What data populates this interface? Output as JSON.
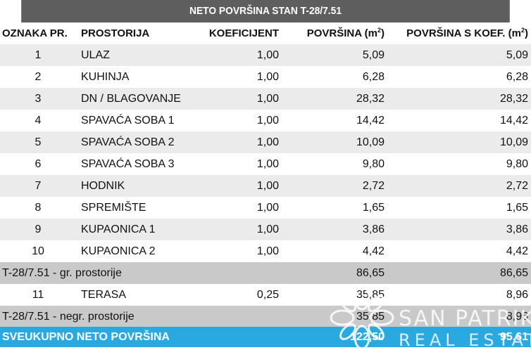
{
  "table": {
    "title": "NETO POVRŠINA STAN T-28/7.51",
    "headers": {
      "no": "OZNAKA PR.",
      "room": "PROSTORIJA",
      "koef": "KOEFICIJENT",
      "pov": "POVRŠINA (m",
      "pov_sup": "2",
      "pov_close": ")",
      "povk": "POVRŠINA S KOEF. (m",
      "povk_sup": "2",
      "povk_close": ")"
    },
    "rows": [
      {
        "no": "1",
        "room": "ULAZ",
        "koef": "1,00",
        "pov": "5,09",
        "povk": "5,09"
      },
      {
        "no": "2",
        "room": "KUHINJA",
        "koef": "1,00",
        "pov": "6,28",
        "povk": "6,28"
      },
      {
        "no": "3",
        "room": "DN / BLAGOVANJE",
        "koef": "1,00",
        "pov": "28,32",
        "povk": "28,32"
      },
      {
        "no": "4",
        "room": "SPAVAĆA SOBA 1",
        "koef": "1,00",
        "pov": "14,42",
        "povk": "14,42"
      },
      {
        "no": "5",
        "room": "SPAVAĆA SOBA 2",
        "koef": "1,00",
        "pov": "10,09",
        "povk": "10,09"
      },
      {
        "no": "6",
        "room": "SPAVAĆA SOBA 3",
        "koef": "1,00",
        "pov": "9,80",
        "povk": "9,80"
      },
      {
        "no": "7",
        "room": "HODNIK",
        "koef": "1,00",
        "pov": "2,72",
        "povk": "2,72"
      },
      {
        "no": "8",
        "room": "SPREMIŠTE",
        "koef": "1,00",
        "pov": "1,65",
        "povk": "1,65"
      },
      {
        "no": "9",
        "room": "KUPAONICA 1",
        "koef": "1,00",
        "pov": "3,86",
        "povk": "3,86"
      },
      {
        "no": "10",
        "room": "KUPAONICA 2",
        "koef": "1,00",
        "pov": "4,42",
        "povk": "4,42"
      }
    ],
    "subtotal_gr": {
      "label": "T-28/7.51 - gr. prostorije",
      "pov": "86,65",
      "povk": "86,65"
    },
    "terrace": {
      "no": "11",
      "room": "TERASA",
      "koef": "0,25",
      "pov": "35,85",
      "povk": "8,96"
    },
    "subtotal_negr": {
      "label": "T-28/7.51 - negr. prostorije",
      "pov": "35,85",
      "povk": "8,96"
    },
    "total": {
      "label": "SVEUKUPNO NETO POVRŠINA",
      "pov": "122,50",
      "povk": "95,61"
    }
  },
  "watermark": {
    "icon": "san-patrik-logo-icon",
    "line1": "SAN PATRIK",
    "line2": "REAL ESTATE"
  }
}
